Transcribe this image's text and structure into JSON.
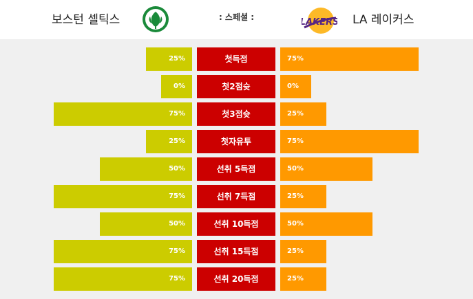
{
  "header": {
    "home_team": "보스턴 셀틱스",
    "away_team": "LA 레이커스",
    "title": ": 스페셜 :",
    "home_logo_text": "CELTICS",
    "away_logo_text": "LAKERS"
  },
  "colors": {
    "home": "#cccc00",
    "away": "#ff9900",
    "label": "#cc0000"
  },
  "rows": [
    {
      "label": "첫득점",
      "home": "25%",
      "away": "75%",
      "home_value": 25,
      "away_value": 75
    },
    {
      "label": "첫2점슛",
      "home": "0%",
      "away": "0%",
      "home_value": 0,
      "away_value": 0
    },
    {
      "label": "첫3점슛",
      "home": "75%",
      "away": "25%",
      "home_value": 75,
      "away_value": 25
    },
    {
      "label": "첫자유투",
      "home": "25%",
      "away": "75%",
      "home_value": 25,
      "away_value": 75
    },
    {
      "label": "선취 5득점",
      "home": "50%",
      "away": "50%",
      "home_value": 50,
      "away_value": 50
    },
    {
      "label": "선취 7득점",
      "home": "75%",
      "away": "25%",
      "home_value": 75,
      "away_value": 25
    },
    {
      "label": "선취 10득점",
      "home": "50%",
      "away": "50%",
      "home_value": 50,
      "away_value": 50
    },
    {
      "label": "선취 15득점",
      "home": "75%",
      "away": "25%",
      "home_value": 75,
      "away_value": 25
    },
    {
      "label": "선취 20득점",
      "home": "75%",
      "away": "25%",
      "home_value": 75,
      "away_value": 25
    }
  ]
}
